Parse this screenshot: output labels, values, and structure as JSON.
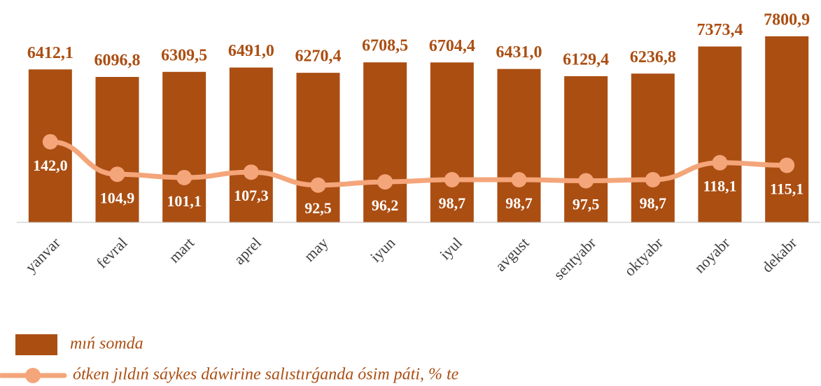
{
  "chart_data": {
    "type": "bar_line",
    "categories": [
      "yanvar",
      "fevral",
      "mart",
      "aprel",
      "may",
      "iyun",
      "iyul",
      "avgust",
      "sentyabr",
      "oktyabr",
      "noyabr",
      "dekabr"
    ],
    "series": [
      {
        "name": "mıń somda",
        "type": "bar",
        "color": "#ab4e12",
        "values": [
          6412.1,
          6096.8,
          6309.5,
          6491.0,
          6270.4,
          6708.5,
          6704.4,
          6431.0,
          6129.4,
          6236.8,
          7373.4,
          7800.9
        ],
        "value_labels": [
          "6412,1",
          "6096,8",
          "6309,5",
          "6491,0",
          "6270,4",
          "6708,5",
          "6704,4",
          "6431,0",
          "6129,4",
          "6236,8",
          "7373,4",
          "7800,9"
        ]
      },
      {
        "name": "ótken jıldıń sáykes dáwirine salıstırǵanda ósim páti, % te",
        "type": "line",
        "axis": "y2",
        "color": "#f4a57a",
        "values": [
          142.0,
          104.9,
          101.1,
          107.3,
          92.5,
          96.2,
          98.7,
          98.7,
          97.5,
          98.7,
          118.1,
          115.1
        ],
        "value_labels": [
          "142,0",
          "104,9",
          "101,1",
          "107,3",
          "92,5",
          "96,2",
          "98,7",
          "98,7",
          "97,5",
          "98,7",
          "118,1",
          "115,1"
        ]
      }
    ],
    "ylim": [
      0,
      9000
    ],
    "y2lim": [
      50,
      295
    ]
  }
}
